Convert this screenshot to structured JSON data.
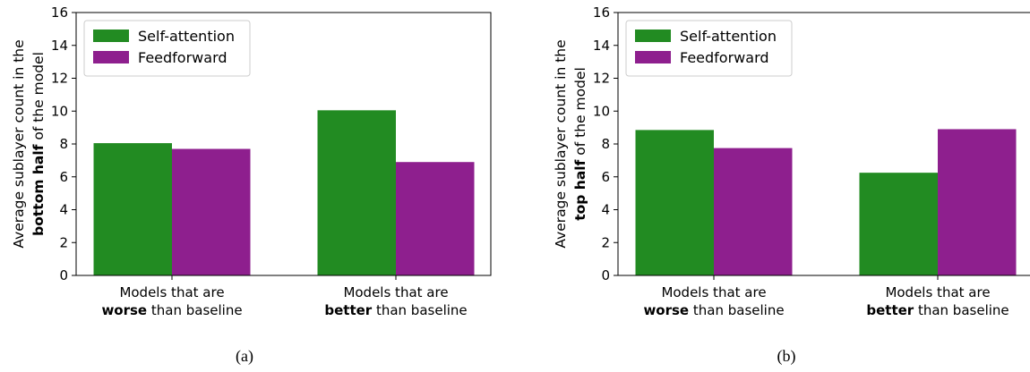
{
  "chart_data": [
    {
      "type": "bar",
      "caption": "(a)",
      "ylabel_line1": "Average sublayer count in the",
      "ylabel_bold": "bottom half",
      "ylabel_rest": " of the model",
      "ylim": [
        0,
        16
      ],
      "yticks": [
        "0",
        "2",
        "4",
        "6",
        "8",
        "10",
        "12",
        "14",
        "16"
      ],
      "categories": [
        {
          "line1": "Models that are",
          "bold": "worse",
          "rest": " than baseline"
        },
        {
          "line1": "Models that are",
          "bold": "better",
          "rest": " than baseline"
        }
      ],
      "series": [
        {
          "name": "Self-attention",
          "color": "#228b22",
          "values": [
            8.05,
            10.05
          ]
        },
        {
          "name": "Feedforward",
          "color": "#8e1f8e",
          "values": [
            7.7,
            6.9
          ]
        }
      ],
      "legend_position": "upper-left",
      "grid": false
    },
    {
      "type": "bar",
      "caption": "(b)",
      "ylabel_line1": "Average sublayer count in the",
      "ylabel_bold": "top half",
      "ylabel_rest": " of the model",
      "ylim": [
        0,
        16
      ],
      "yticks": [
        "0",
        "2",
        "4",
        "6",
        "8",
        "10",
        "12",
        "14",
        "16"
      ],
      "categories": [
        {
          "line1": "Models that are",
          "bold": "worse",
          "rest": " than baseline"
        },
        {
          "line1": "Models that are",
          "bold": "better",
          "rest": " than baseline"
        }
      ],
      "series": [
        {
          "name": "Self-attention",
          "color": "#228b22",
          "values": [
            8.85,
            6.25
          ]
        },
        {
          "name": "Feedforward",
          "color": "#8e1f8e",
          "values": [
            7.75,
            8.9
          ]
        }
      ],
      "legend_position": "upper-left",
      "grid": false
    }
  ]
}
